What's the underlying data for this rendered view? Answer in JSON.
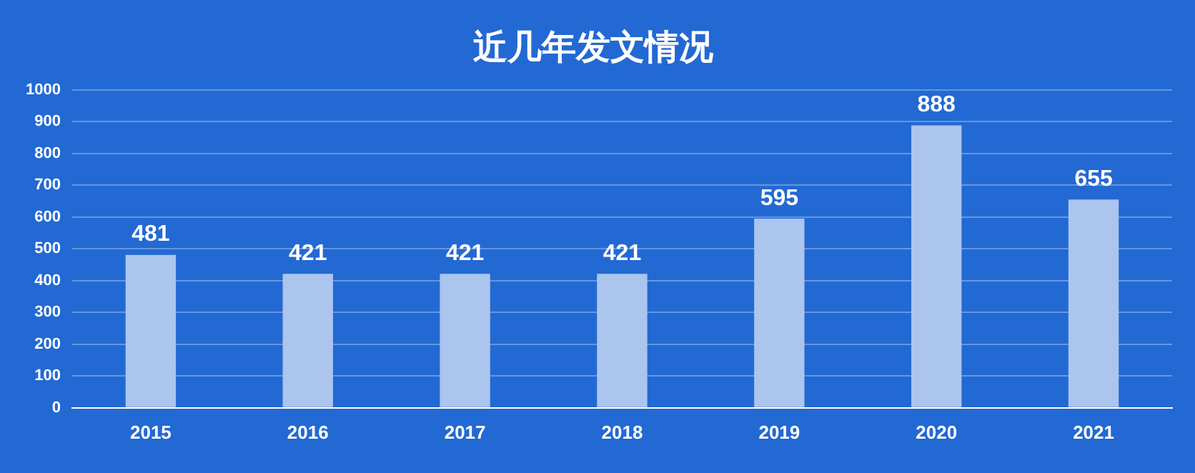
{
  "chart_data": {
    "type": "bar",
    "title": "近几年发文情况",
    "categories": [
      "2015",
      "2016",
      "2017",
      "2018",
      "2019",
      "2020",
      "2021"
    ],
    "values": [
      481,
      421,
      421,
      421,
      595,
      888,
      655
    ],
    "color": "#abc5ee",
    "ylim": [
      0,
      1000
    ],
    "yticks": [
      0,
      100,
      200,
      300,
      400,
      500,
      600,
      700,
      800,
      900,
      1000
    ],
    "grid": "y",
    "data_labels": true,
    "legend": false
  }
}
